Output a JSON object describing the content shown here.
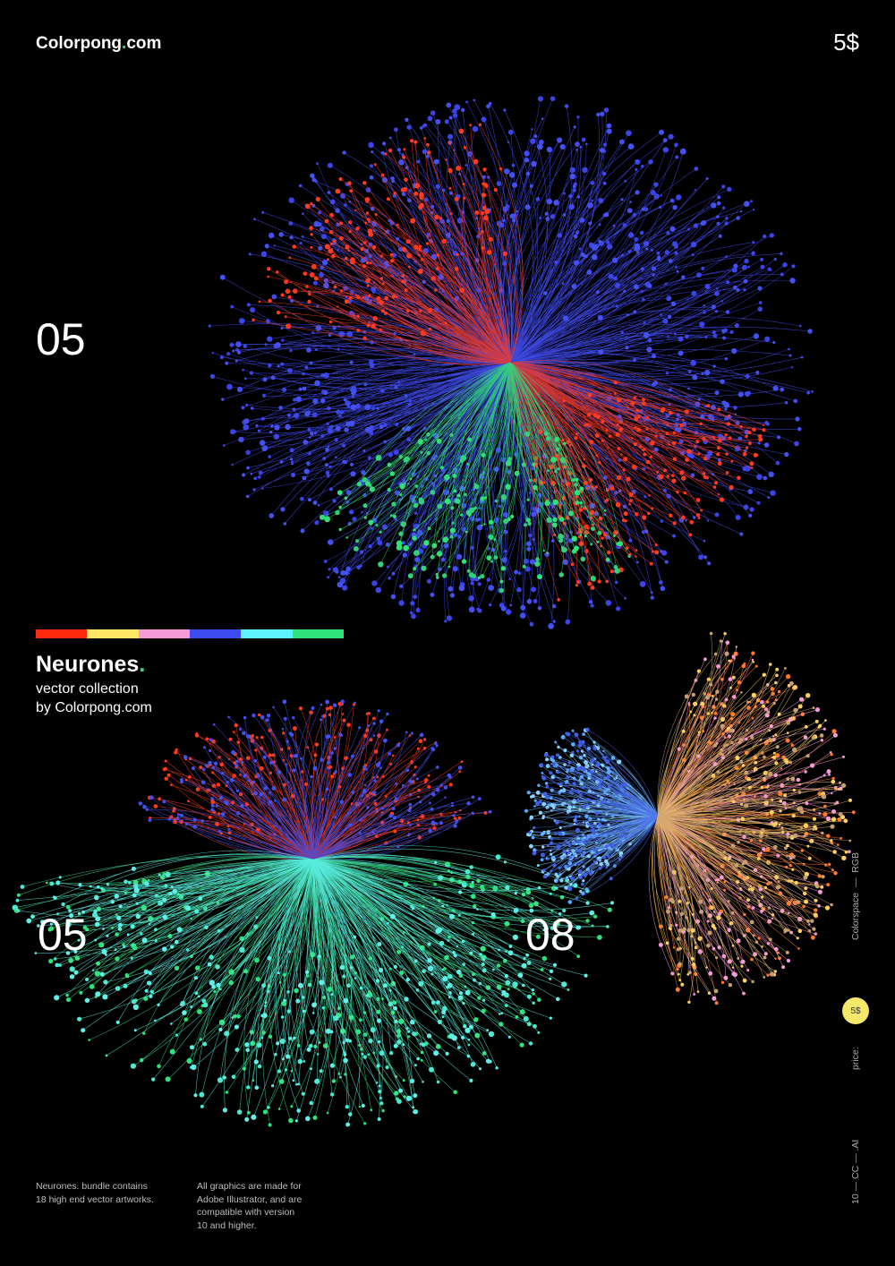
{
  "header": {
    "brand": {
      "name": "Colorpong",
      "dot": ".",
      "suffix": "com"
    },
    "price": "5$"
  },
  "hero": {
    "number": "05"
  },
  "palette": [
    "#ff2a0e",
    "#ffe866",
    "#f79bd8",
    "#3c4bf0",
    "#5ef1ff",
    "#2fe27a"
  ],
  "title": {
    "name": "Neurones",
    "dot": ".",
    "subtitle": "vector collection",
    "byline": "by Colorpong.com"
  },
  "samples": [
    {
      "number": "05"
    },
    {
      "number": "08"
    }
  ],
  "side": {
    "colorspace": "Colorspace  —  RGB",
    "price_label": "price:",
    "price": "5$",
    "formats": "10 — CC — .AI"
  },
  "footer": {
    "bundle": [
      "Neurones. bundle contains",
      "18 high end vector artworks."
    ],
    "compat": [
      "All graphics are made for",
      "Adobe Illustrator, and are",
      "compatible with version",
      "10 and higher."
    ]
  }
}
